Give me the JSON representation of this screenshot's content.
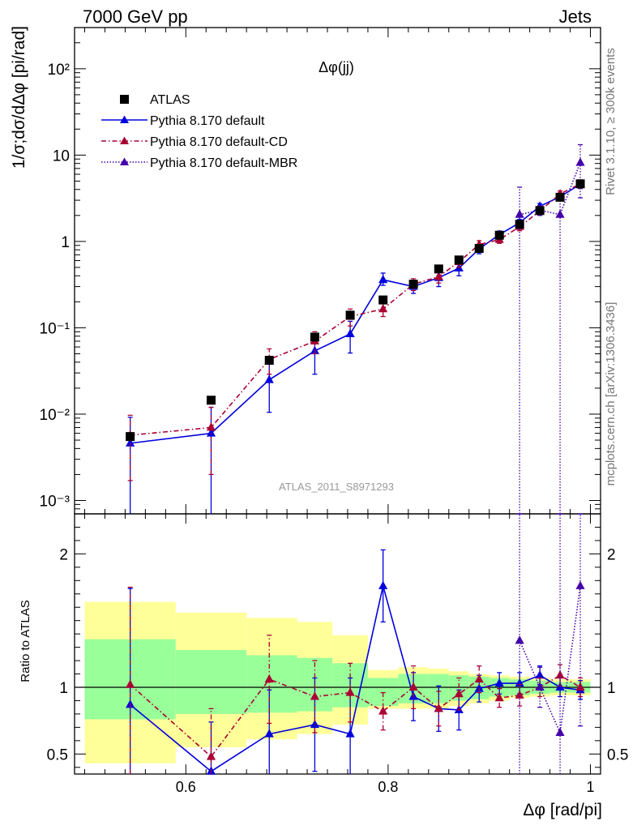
{
  "header": {
    "left": "7000 GeV pp",
    "right": "Jets"
  },
  "side_labels": {
    "rivet": "Rivet 3.1.10, ≥ 300k events",
    "mcplots": "mcplots.cern.ch [arXiv:1306.3436]"
  },
  "main": {
    "title": "Δφ(jj)",
    "ylabel": "1/σ;dσ/dΔφ [pi/rad]",
    "analysis": "ATLAS_2011_S8971293"
  },
  "ratio": {
    "ylabel": "Ratio to ATLAS",
    "xlabel": "Δφ [rad/pi]"
  },
  "legend": [
    {
      "label": "ATLAS",
      "color": "#000000",
      "style": "marker"
    },
    {
      "label": "Pythia 8.170 default",
      "color": "#0000dd",
      "style": "solid"
    },
    {
      "label": "Pythia 8.170 default-CD",
      "color": "#aa0033",
      "style": "dashdot"
    },
    {
      "label": "Pythia 8.170 default-MBR",
      "color": "#4400aa",
      "style": "dotted"
    }
  ],
  "chart_data": [
    {
      "type": "scatter",
      "ylog": true,
      "xlim": [
        0.49,
        1.01
      ],
      "ylim": [
        0.0007,
        300
      ],
      "y_tick_labels": [
        "10⁻³",
        "10⁻²",
        "10⁻¹",
        "1",
        "10",
        "10²"
      ],
      "x": [
        0.545,
        0.625,
        0.6825,
        0.7275,
        0.7625,
        0.795,
        0.825,
        0.85,
        0.87,
        0.89,
        0.91,
        0.93,
        0.95,
        0.97,
        0.99
      ],
      "data": [
        0.0055,
        0.0145,
        0.042,
        0.078,
        0.14,
        0.21,
        0.32,
        0.48,
        0.61,
        0.83,
        1.18,
        1.58,
        2.28,
        3.25,
        4.65
      ],
      "series": [
        {
          "name": "Pythia 8.170 default",
          "values": [
            0.0046,
            0.006,
            0.025,
            0.054,
            0.085,
            0.36,
            0.3,
            0.38,
            0.49,
            0.82,
            1.2,
            1.65,
            2.55,
            3.3,
            4.6
          ],
          "err_lo": [
            0.0046,
            0.006,
            0.0145,
            0.025,
            0.034,
            0.05,
            0.05,
            0.08,
            0.09,
            0.1,
            0.12,
            0.15,
            0.2,
            0.3,
            0.5
          ],
          "err_hi": [
            0.0046,
            0.006,
            0.0145,
            0.025,
            0.034,
            0.07,
            0.05,
            0.08,
            0.09,
            0.1,
            0.12,
            0.15,
            0.2,
            0.3,
            0.5
          ]
        },
        {
          "name": "Pythia 8.170 default-CD",
          "values": [
            0.0057,
            0.007,
            0.043,
            0.07,
            0.135,
            0.165,
            0.32,
            0.39,
            0.58,
            0.92,
            1.05,
            1.48,
            2.25,
            3.55,
            4.65
          ],
          "err_lo": [
            0.004,
            0.005,
            0.014,
            0.02,
            0.03,
            0.03,
            0.05,
            0.06,
            0.08,
            0.1,
            0.1,
            0.15,
            0.2,
            0.3,
            0.5
          ],
          "err_hi": [
            0.004,
            0.005,
            0.014,
            0.02,
            0.03,
            0.03,
            0.05,
            0.06,
            0.08,
            0.1,
            0.1,
            0.15,
            0.2,
            0.3,
            0.5
          ]
        },
        {
          "name": "Pythia 8.170 default-MBR",
          "values": [
            null,
            null,
            null,
            null,
            null,
            null,
            null,
            null,
            null,
            null,
            null,
            2.05,
            2.3,
            2.05,
            8.2
          ],
          "err_lo": [
            null,
            null,
            null,
            null,
            null,
            null,
            null,
            null,
            null,
            null,
            null,
            2.05,
            0.3,
            2.05,
            5.0
          ],
          "err_hi": [
            null,
            null,
            null,
            null,
            null,
            null,
            null,
            null,
            null,
            null,
            null,
            2.2,
            0.3,
            1.5,
            5.0
          ]
        }
      ]
    },
    {
      "type": "scatter",
      "xlim": [
        0.49,
        1.01
      ],
      "ylim": [
        0.35,
        2.3
      ],
      "x_ticks": [
        0.6,
        0.8,
        1.0
      ],
      "x_tick_labels": [
        "0.6",
        "0.8",
        "1"
      ],
      "y_ticks": [
        0.5,
        1.0,
        2.0
      ],
      "y_tick_labels": [
        "0.5",
        "1",
        "2"
      ],
      "bands": [
        {
          "edges": [
            0.5,
            0.59
          ],
          "inner": [
            0.76,
            1.36
          ],
          "outer": [
            0.43,
            1.64
          ]
        },
        {
          "edges": [
            0.59,
            0.66
          ],
          "inner": [
            0.8,
            1.28
          ],
          "outer": [
            0.55,
            1.56
          ]
        },
        {
          "edges": [
            0.66,
            0.71
          ],
          "inner": [
            0.81,
            1.24
          ],
          "outer": [
            0.61,
            1.52
          ]
        },
        {
          "edges": [
            0.71,
            0.745
          ],
          "inner": [
            0.82,
            1.22
          ],
          "outer": [
            0.65,
            1.49
          ]
        },
        {
          "edges": [
            0.745,
            0.78
          ],
          "inner": [
            0.85,
            1.18
          ],
          "outer": [
            0.72,
            1.39
          ]
        },
        {
          "edges": [
            0.78,
            0.81
          ],
          "inner": [
            0.86,
            1.07
          ],
          "outer": [
            0.84,
            1.13
          ]
        },
        {
          "edges": [
            0.81,
            0.84
          ],
          "inner": [
            0.88,
            1.1
          ],
          "outer": [
            0.84,
            1.15
          ]
        },
        {
          "edges": [
            0.84,
            0.86
          ],
          "inner": [
            0.88,
            1.1
          ],
          "outer": [
            0.84,
            1.14
          ]
        },
        {
          "edges": [
            0.86,
            0.88
          ],
          "inner": [
            0.9,
            1.09
          ],
          "outer": [
            0.86,
            1.12
          ]
        },
        {
          "edges": [
            0.88,
            0.9
          ],
          "inner": [
            0.91,
            1.08
          ],
          "outer": [
            0.88,
            1.1
          ]
        },
        {
          "edges": [
            0.9,
            0.92
          ],
          "inner": [
            0.93,
            1.07
          ],
          "outer": [
            0.9,
            1.09
          ]
        },
        {
          "edges": [
            0.92,
            0.94
          ],
          "inner": [
            0.94,
            1.06
          ],
          "outer": [
            0.92,
            1.08
          ]
        },
        {
          "edges": [
            0.94,
            0.96
          ],
          "inner": [
            0.95,
            1.05
          ],
          "outer": [
            0.93,
            1.07
          ]
        },
        {
          "edges": [
            0.96,
            0.98
          ],
          "inner": [
            0.96,
            1.04
          ],
          "outer": [
            0.94,
            1.06
          ]
        },
        {
          "edges": [
            0.98,
            1.0
          ],
          "inner": [
            0.96,
            1.04
          ],
          "outer": [
            0.94,
            1.06
          ]
        }
      ],
      "series": [
        {
          "name": "Pythia 8.170 default",
          "values": [
            0.87,
            0.37,
            0.65,
            0.72,
            0.65,
            1.76,
            0.93,
            0.84,
            0.83,
            0.99,
            1.03,
            1.03,
            1.09,
            1.0,
            0.98
          ],
          "err_lo": [
            0.87,
            0.37,
            0.33,
            0.35,
            0.65,
            0.27,
            0.18,
            0.17,
            0.15,
            0.1,
            0.08,
            0.08,
            0.07,
            0.07,
            0.07
          ],
          "err_hi": [
            0.87,
            0.37,
            0.33,
            0.35,
            0.42,
            0.27,
            0.18,
            0.17,
            0.15,
            0.1,
            0.08,
            0.08,
            0.07,
            0.07,
            0.07
          ]
        },
        {
          "name": "Pythia 8.170 default-CD",
          "values": [
            1.02,
            0.48,
            1.06,
            0.93,
            0.96,
            0.82,
            1.0,
            0.84,
            0.95,
            1.06,
            0.92,
            0.94,
            1.0,
            1.09,
            1.0
          ],
          "err_lo": [
            0.73,
            0.36,
            0.33,
            0.27,
            0.22,
            0.14,
            0.16,
            0.13,
            0.12,
            0.1,
            0.07,
            0.08,
            0.07,
            0.08,
            0.07
          ],
          "err_hi": [
            0.73,
            0.36,
            0.33,
            0.27,
            0.22,
            0.14,
            0.16,
            0.13,
            0.12,
            0.1,
            0.07,
            0.08,
            0.07,
            0.08,
            0.07
          ]
        },
        {
          "name": "Pythia 8.170 default-MBR",
          "values": [
            null,
            null,
            null,
            null,
            null,
            null,
            null,
            null,
            null,
            null,
            null,
            1.35,
            1.0,
            0.66,
            1.76
          ],
          "err_lo": [
            null,
            null,
            null,
            null,
            null,
            null,
            null,
            null,
            null,
            null,
            null,
            1.35,
            0.15,
            0.66,
            1.05
          ],
          "err_hi": [
            null,
            null,
            null,
            null,
            null,
            null,
            null,
            null,
            null,
            null,
            null,
            1.4,
            0.15,
            1.7,
            1.1
          ]
        }
      ]
    }
  ]
}
